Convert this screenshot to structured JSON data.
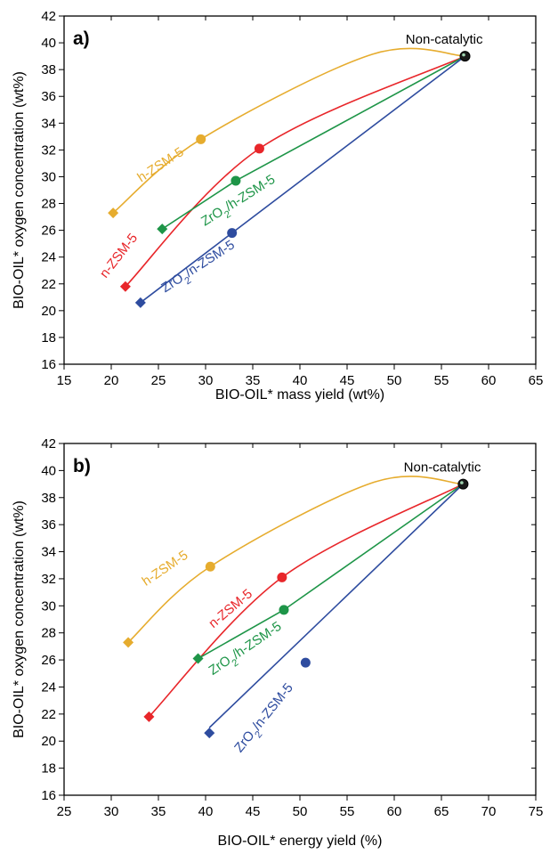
{
  "chart_data": [
    {
      "type": "line",
      "panel_label": "a)",
      "xlabel": "BIO-OIL* mass yield (wt%)",
      "ylabel": "BIO-OIL* oxygen concentration (wt%)",
      "xlim": [
        15,
        65
      ],
      "ylim": [
        16,
        42
      ],
      "x_ticks": [
        15,
        20,
        25,
        30,
        35,
        40,
        45,
        50,
        55,
        60,
        65
      ],
      "y_ticks": [
        16,
        18,
        20,
        22,
        24,
        26,
        28,
        30,
        32,
        34,
        36,
        38,
        40,
        42
      ],
      "annotation": {
        "text": "Non-catalytic",
        "x": 57.5,
        "y": 39
      },
      "origin": {
        "x": 57.5,
        "y": 39
      },
      "series": [
        {
          "label": "h-ZSM-5",
          "color": "#E6AC2E",
          "circle": [
            29.5,
            32.8
          ],
          "diamond": [
            20.2,
            27.3
          ]
        },
        {
          "label": "n-ZSM-5",
          "color": "#E8262A",
          "circle": [
            35.7,
            32.1
          ],
          "diamond": [
            21.5,
            21.8
          ]
        },
        {
          "label": "ZrO",
          "label_sub": "2",
          "label_rest": "/h-ZSM-5",
          "color": "#1E9548",
          "circle": [
            33.2,
            29.7
          ],
          "diamond": [
            25.4,
            26.1
          ]
        },
        {
          "label": "ZrO",
          "label_sub": "2",
          "label_rest": "/n-ZSM-5",
          "color": "#2E4C9F",
          "circle": [
            32.8,
            25.8
          ],
          "diamond": [
            23.1,
            20.6
          ]
        }
      ]
    },
    {
      "type": "line",
      "panel_label": "b)",
      "xlabel": "BIO-OIL* energy yield (%)",
      "ylabel": "BIO-OIL* oxygen concentration (wt%)",
      "xlim": [
        25,
        75
      ],
      "ylim": [
        16,
        42
      ],
      "x_ticks": [
        25,
        30,
        35,
        40,
        45,
        50,
        55,
        60,
        65,
        70,
        75
      ],
      "y_ticks": [
        16,
        18,
        20,
        22,
        24,
        26,
        28,
        30,
        32,
        34,
        36,
        38,
        40,
        42
      ],
      "annotation": {
        "text": "Non-catalytic",
        "x": 67.3,
        "y": 39
      },
      "origin": {
        "x": 67.3,
        "y": 39
      },
      "series": [
        {
          "label": "h-ZSM-5",
          "color": "#E6AC2E",
          "circle": [
            40.5,
            32.9
          ],
          "diamond": [
            31.8,
            27.3
          ]
        },
        {
          "label": "n-ZSM-5",
          "color": "#E8262A",
          "circle": [
            48.1,
            32.1
          ],
          "diamond": [
            34.0,
            21.8
          ]
        },
        {
          "label": "ZrO",
          "label_sub": "2",
          "label_rest": "/h-ZSM-5",
          "color": "#1E9548",
          "circle": [
            48.3,
            29.7
          ],
          "diamond": [
            39.2,
            26.1
          ]
        },
        {
          "label": "ZrO",
          "label_sub": "2",
          "label_rest": "/n-ZSM-5",
          "color": "#2E4C9F",
          "circle": [
            50.6,
            25.8
          ],
          "diamond": [
            40.4,
            20.6
          ]
        }
      ]
    }
  ]
}
